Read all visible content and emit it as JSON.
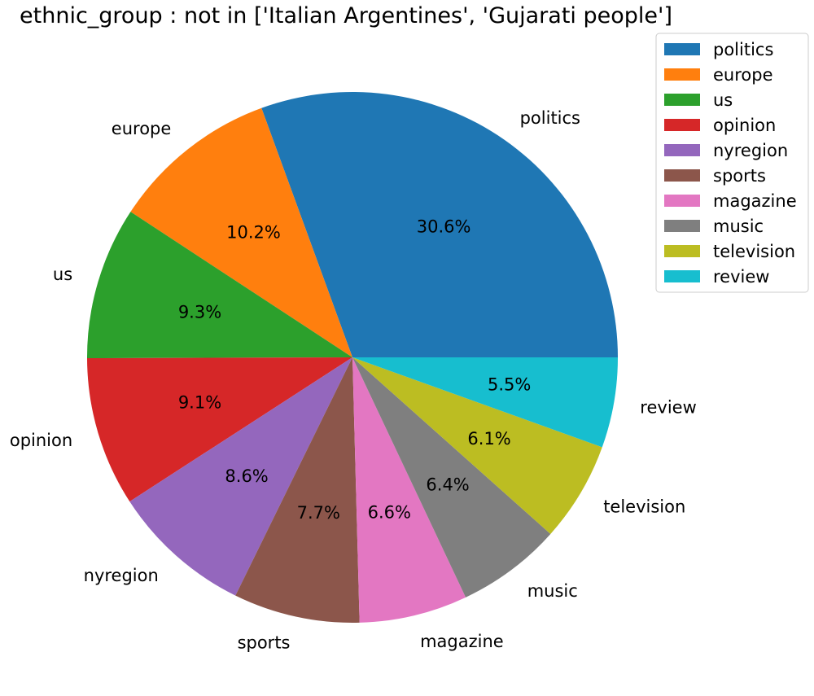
{
  "chart_data": {
    "type": "pie",
    "title": "ethnic_group : not in ['Italian Argentines', 'Gujarati people']",
    "slices": [
      {
        "label": "politics",
        "value": 30.6,
        "pct_label": "30.6%",
        "color": "#1f77b4"
      },
      {
        "label": "europe",
        "value": 10.2,
        "pct_label": "10.2%",
        "color": "#ff7f0e"
      },
      {
        "label": "us",
        "value": 9.3,
        "pct_label": "9.3%",
        "color": "#2ca02c"
      },
      {
        "label": "opinion",
        "value": 9.1,
        "pct_label": "9.1%",
        "color": "#d62728"
      },
      {
        "label": "nyregion",
        "value": 8.6,
        "pct_label": "8.6%",
        "color": "#9467bd"
      },
      {
        "label": "sports",
        "value": 7.7,
        "pct_label": "7.7%",
        "color": "#8c564b"
      },
      {
        "label": "magazine",
        "value": 6.6,
        "pct_label": "6.6%",
        "color": "#e377c2"
      },
      {
        "label": "music",
        "value": 6.4,
        "pct_label": "6.4%",
        "color": "#7f7f7f"
      },
      {
        "label": "television",
        "value": 6.1,
        "pct_label": "6.1%",
        "color": "#bcbd22"
      },
      {
        "label": "review",
        "value": 5.5,
        "pct_label": "5.5%",
        "color": "#17becf"
      }
    ],
    "start_angle_deg": 0,
    "direction": "counterclockwise",
    "legend_position": "top-right"
  }
}
